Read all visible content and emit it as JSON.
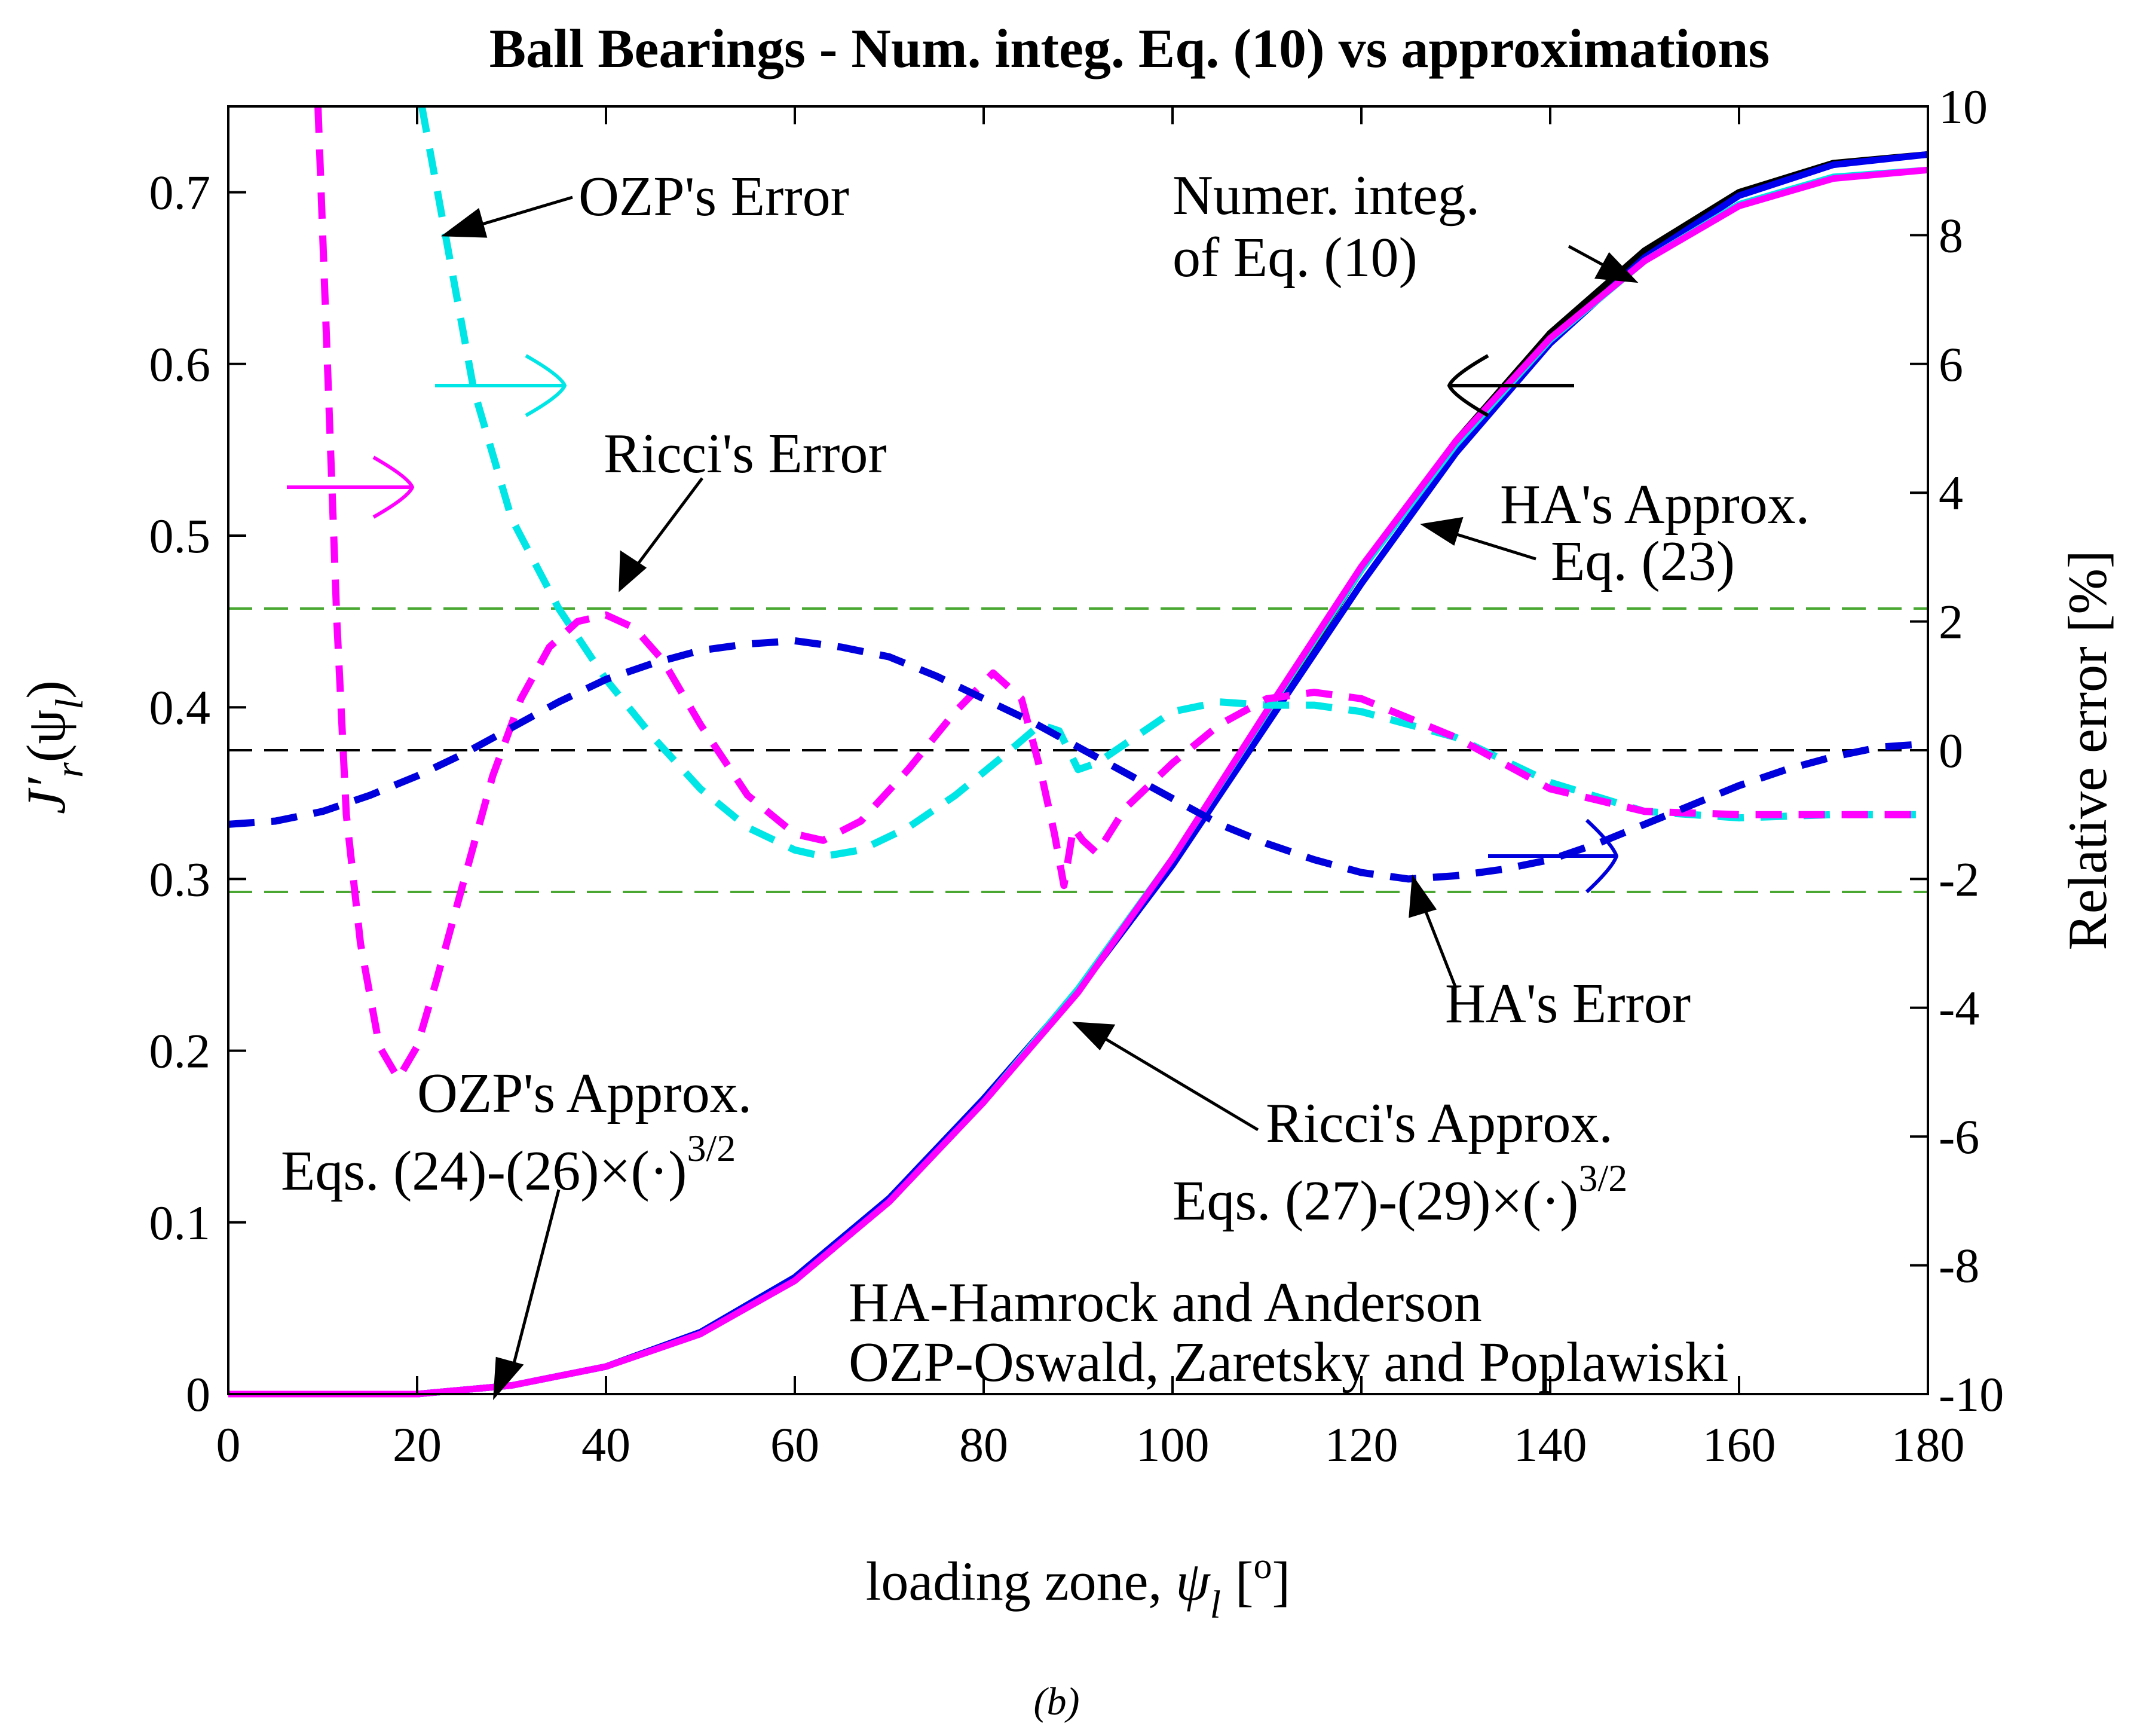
{
  "chart_data": {
    "type": "line",
    "title": "Ball Bearings - Num. integ. Eq. (10) vs approximations",
    "xlabel_prefix": "loading zone, ",
    "xlabel_symbol": "ψ",
    "xlabel_sub": "l",
    "xlabel_unit_open": "[",
    "xlabel_unit_sup": "o",
    "xlabel_unit_close": "]",
    "ylabel_base": "J′",
    "ylabel_sub": "r",
    "ylabel_paren_open": "(ψ",
    "ylabel_paren_sub": "l",
    "ylabel_paren_close": ")",
    "y2label": "Relative error [%]",
    "xlim": [
      0,
      180
    ],
    "ylim": [
      0,
      0.75
    ],
    "y2lim": [
      -10,
      10
    ],
    "xticks": [
      "0",
      "20",
      "40",
      "60",
      "80",
      "100",
      "120",
      "140",
      "160",
      "180"
    ],
    "yticks": [
      "0",
      "0.1",
      "0.2",
      "0.3",
      "0.4",
      "0.5",
      "0.6",
      "0.7"
    ],
    "y2ticks": [
      "-10",
      "-8",
      "-6",
      "-4",
      "-2",
      "0",
      "2",
      "4",
      "6",
      "8",
      "10"
    ],
    "grid": false,
    "reference_lines": [
      {
        "axis": "right",
        "y": 2.2,
        "color": "#4aa832",
        "style": "dashed"
      },
      {
        "axis": "right",
        "y": -2.2,
        "color": "#4aa832",
        "style": "dashed"
      },
      {
        "axis": "right",
        "y": 0,
        "color": "#000000",
        "style": "dashed"
      }
    ],
    "series": [
      {
        "axis": "left",
        "color": "#000000",
        "style": "solid",
        "x": [
          0,
          20,
          30,
          40,
          50,
          60,
          70,
          80,
          90,
          100,
          110,
          120,
          130,
          140,
          150,
          160,
          170,
          180
        ],
        "y": [
          0,
          0,
          0.005,
          0.016,
          0.036,
          0.068,
          0.114,
          0.172,
          0.235,
          0.31,
          0.395,
          0.48,
          0.555,
          0.618,
          0.666,
          0.7,
          0.717,
          0.722
        ]
      },
      {
        "axis": "left",
        "color": "#0000ee",
        "style": "solid",
        "x": [
          0,
          20,
          30,
          40,
          50,
          60,
          70,
          80,
          90,
          100,
          110,
          120,
          130,
          140,
          150,
          160,
          170,
          180
        ],
        "y": [
          0,
          0,
          0.005,
          0.016,
          0.036,
          0.068,
          0.114,
          0.172,
          0.235,
          0.308,
          0.39,
          0.472,
          0.548,
          0.612,
          0.662,
          0.698,
          0.716,
          0.722
        ]
      },
      {
        "axis": "left",
        "color": "#00e5e5",
        "style": "solid",
        "x": [
          0,
          20,
          30,
          40,
          50,
          60,
          70,
          80,
          90,
          100,
          110,
          120,
          130,
          140,
          150,
          160,
          170,
          180
        ],
        "y": [
          0,
          0,
          0.005,
          0.016,
          0.035,
          0.066,
          0.112,
          0.17,
          0.236,
          0.312,
          0.397,
          0.48,
          0.553,
          0.614,
          0.66,
          0.693,
          0.709,
          0.713
        ]
      },
      {
        "axis": "left",
        "color": "#ff00ff",
        "style": "solid",
        "x": [
          0,
          20,
          30,
          40,
          50,
          60,
          70,
          80,
          90,
          100,
          110,
          120,
          130,
          140,
          150,
          160,
          170,
          180
        ],
        "y": [
          0,
          0,
          0.005,
          0.016,
          0.035,
          0.066,
          0.112,
          0.17,
          0.234,
          0.312,
          0.398,
          0.482,
          0.555,
          0.615,
          0.66,
          0.692,
          0.708,
          0.713
        ]
      },
      {
        "axis": "right",
        "color": "#00e5e5",
        "style": "dashed",
        "x": [
          20.5,
          23,
          26,
          30,
          35,
          40,
          45,
          50,
          55,
          60,
          63,
          67,
          72,
          77,
          82,
          86,
          88,
          90,
          92,
          95,
          100,
          105,
          110,
          115,
          120,
          130,
          140,
          150,
          160,
          170,
          180
        ],
        "y": [
          10,
          8,
          5.6,
          3.6,
          2.2,
          1.1,
          0.2,
          -0.6,
          -1.2,
          -1.55,
          -1.65,
          -1.55,
          -1.2,
          -0.7,
          -0.1,
          0.4,
          0.3,
          -0.3,
          -0.2,
          0.1,
          0.6,
          0.75,
          0.7,
          0.7,
          0.6,
          0.2,
          -0.5,
          -0.95,
          -1.05,
          -1.0,
          -1.0
        ]
      },
      {
        "axis": "right",
        "color": "#ff00ff",
        "style": "dashed",
        "x": [
          9.5,
          10.5,
          11.5,
          12.5,
          14,
          16,
          18,
          20,
          22,
          25,
          28,
          31,
          34,
          37,
          40,
          43,
          46,
          50,
          55,
          60,
          63,
          67,
          72,
          77,
          81,
          84,
          86,
          87.5,
          88.5,
          89.5,
          90.5,
          92,
          95,
          100,
          105,
          110,
          115,
          120,
          130,
          140,
          150,
          160,
          170,
          180
        ],
        "y": [
          10,
          6,
          2,
          -1,
          -3,
          -4.6,
          -5.1,
          -4.6,
          -3.6,
          -2.0,
          -0.4,
          0.8,
          1.6,
          2.0,
          2.1,
          1.9,
          1.4,
          0.4,
          -0.7,
          -1.3,
          -1.4,
          -1.1,
          -0.3,
          0.6,
          1.2,
          0.8,
          -0.3,
          -1.3,
          -2.1,
          -1.2,
          -1.4,
          -1.6,
          -0.9,
          -0.2,
          0.4,
          0.8,
          0.9,
          0.8,
          0.2,
          -0.6,
          -0.95,
          -1.0,
          -1.0,
          -1.0
        ]
      },
      {
        "axis": "right",
        "color": "#0000dd",
        "style": "dashed",
        "x": [
          0,
          5,
          10,
          15,
          20,
          25,
          30,
          35,
          40,
          45,
          50,
          55,
          60,
          65,
          70,
          75,
          80,
          85,
          90,
          95,
          100,
          105,
          110,
          115,
          120,
          125,
          130,
          135,
          140,
          145,
          150,
          155,
          160,
          165,
          170,
          175,
          180
        ],
        "y": [
          -1.15,
          -1.1,
          -0.95,
          -0.7,
          -0.4,
          -0.05,
          0.35,
          0.75,
          1.1,
          1.35,
          1.55,
          1.65,
          1.7,
          1.6,
          1.45,
          1.15,
          0.8,
          0.45,
          0.05,
          -0.35,
          -0.75,
          -1.15,
          -1.45,
          -1.7,
          -1.9,
          -2.0,
          -1.95,
          -1.85,
          -1.7,
          -1.45,
          -1.15,
          -0.85,
          -0.55,
          -0.3,
          -0.1,
          0.05,
          0.1
        ]
      }
    ],
    "annotations": [
      {
        "text": "OZP's Error"
      },
      {
        "text": "Ricci's Error"
      },
      {
        "text": "Numer. integ."
      },
      {
        "text": "of Eq. (10)"
      },
      {
        "text": "HA's Approx."
      },
      {
        "text": "Eq. (23)"
      },
      {
        "text": "HA's Error"
      },
      {
        "text": "OZP's Approx."
      },
      {
        "text": "Eqs. (24)-(26)×(·)"
      },
      {
        "text": "3/2"
      },
      {
        "text": "Ricci's Approx."
      },
      {
        "text": "Eqs. (27)-(29)×(·)"
      },
      {
        "text": "3/2"
      },
      {
        "text": "HA-Hamrock and Anderson"
      },
      {
        "text": "OZP-Oswald, Zaretsky and Poplawiski"
      }
    ],
    "caption": "(b)"
  }
}
